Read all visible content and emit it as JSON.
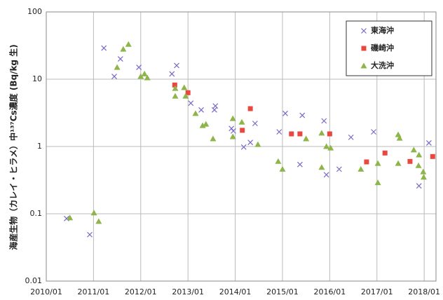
{
  "chart_data": {
    "type": "scatter",
    "y_label": "海産生物（カレイ・ヒラメ）中¹³⁷Cs濃度 (Bq/kg 生)",
    "log_y": true,
    "grid": true,
    "legend": "upper right",
    "xlim": [
      2010,
      2018.25
    ],
    "xticks": [
      {
        "value": 2010,
        "label": "2010/01"
      },
      {
        "value": 2011,
        "label": "2011/01"
      },
      {
        "value": 2012,
        "label": "2012/01"
      },
      {
        "value": 2013,
        "label": "2013/01"
      },
      {
        "value": 2014,
        "label": "2014/01"
      },
      {
        "value": 2015,
        "label": "2015/01"
      },
      {
        "value": 2016,
        "label": "2016/01"
      },
      {
        "value": 2017,
        "label": "2017/01"
      },
      {
        "value": 2018,
        "label": "2018/01"
      }
    ],
    "ylim": [
      0.01,
      100
    ],
    "yticks": [
      0.01,
      0.1,
      1,
      10,
      100
    ],
    "series": [
      {
        "name": "東海沖",
        "color": "#7b68c8",
        "marker": "x",
        "x": [
          2010.43,
          2010.92,
          2011.22,
          2011.44,
          2011.57,
          2011.96,
          2012.66,
          2012.76,
          2013.06,
          2013.28,
          2013.56,
          2013.58,
          2013.92,
          2013.96,
          2014.18,
          2014.32,
          2014.42,
          2014.93,
          2015.06,
          2015.37,
          2015.42,
          2015.88,
          2015.93,
          2016.2,
          2016.45,
          2016.93,
          2017.89,
          2018.1
        ],
        "values": [
          0.085,
          0.049,
          29,
          11,
          20,
          15,
          12,
          16,
          4.4,
          3.5,
          3.5,
          4,
          1.85,
          1.7,
          0.98,
          1.15,
          2.2,
          1.65,
          3.1,
          0.54,
          2.9,
          2.4,
          0.38,
          0.46,
          1.37,
          1.65,
          0.26,
          1.13
        ]
      },
      {
        "name": "磯崎沖",
        "color": "#e8483f",
        "marker": "square",
        "x": [
          2012.72,
          2013.0,
          2014.15,
          2014.32,
          2015.19,
          2015.37,
          2016.0,
          2016.78,
          2017.17,
          2017.7,
          2018.18
        ],
        "values": [
          8.2,
          6.3,
          1.74,
          3.65,
          1.54,
          1.54,
          1.54,
          0.59,
          0.8,
          0.6,
          0.71
        ]
      },
      {
        "name": "大洗沖",
        "color": "#8db54a",
        "marker": "triangle",
        "x": [
          2010.5,
          2011.01,
          2011.11,
          2011.5,
          2011.63,
          2011.74,
          2012.0,
          2012.08,
          2012.14,
          2012.73,
          2012.73,
          2012.92,
          2012.95,
          2013.16,
          2013.31,
          2013.38,
          2013.53,
          2013.95,
          2013.95,
          2014.14,
          2014.48,
          2014.91,
          2015.0,
          2015.5,
          2015.83,
          2015.93,
          2016.02,
          2015.83,
          2016.66,
          2017.02,
          2017.02,
          2017.45,
          2017.48,
          2017.45,
          2017.78,
          2017.89,
          2017.88,
          2017.98,
          2017.99
        ],
        "values": [
          0.087,
          0.103,
          0.077,
          15,
          28,
          33,
          11,
          12,
          10.5,
          7.3,
          5.6,
          7.5,
          5.6,
          3.1,
          2.05,
          2.15,
          1.3,
          2.6,
          1.4,
          2.3,
          1.07,
          0.6,
          0.46,
          1.3,
          1.58,
          1.0,
          0.95,
          0.49,
          0.46,
          0.29,
          0.56,
          1.5,
          1.33,
          0.56,
          0.89,
          0.75,
          0.52,
          0.42,
          0.35
        ]
      }
    ]
  }
}
